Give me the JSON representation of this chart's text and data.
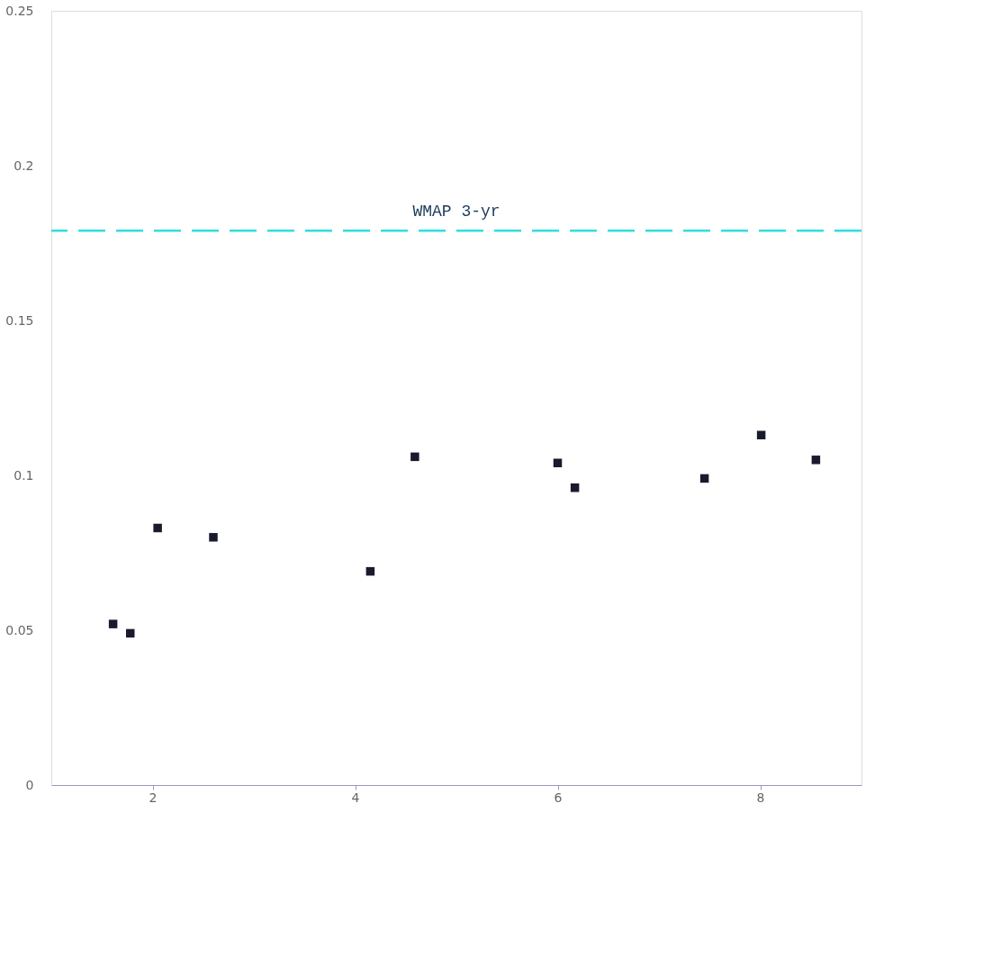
{
  "chart_data": {
    "type": "scatter",
    "x": [
      1.61,
      1.78,
      2.05,
      2.6,
      4.15,
      4.59,
      6.0,
      6.17,
      7.45,
      8.01,
      8.55
    ],
    "series": [
      {
        "color": "#1a1a2e",
        "values": [
          0.052,
          0.049,
          0.083,
          0.08,
          0.069,
          0.106,
          0.104,
          0.096,
          0.099,
          0.113,
          0.105
        ]
      }
    ],
    "marker": "square",
    "xlim": [
      1,
      9
    ],
    "xticks": [
      2,
      4,
      6,
      8
    ],
    "ylim": [
      0,
      0.25
    ],
    "yticks": [
      0,
      0.05,
      0.1,
      0.15,
      0.2,
      0.25
    ],
    "grid": false,
    "ref_lines": [
      {
        "axis": "y",
        "value": 0.179,
        "label": "WMAP 3-yr",
        "color": "#33dde0",
        "line_style": "dashed"
      }
    ]
  }
}
